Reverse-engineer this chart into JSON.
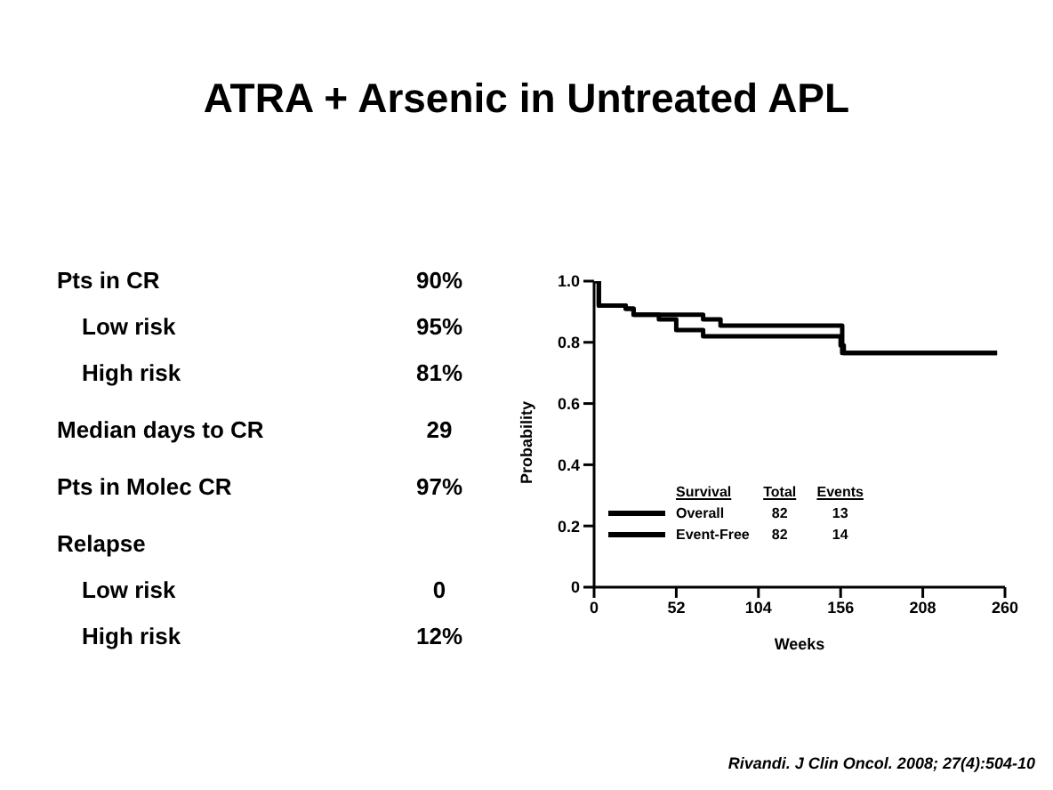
{
  "chart_data": [
    {
      "type": "other",
      "title": "ATRA + Arsenic in Untreated APL",
      "categories": [
        "Pts in CR",
        "Low risk",
        "High risk",
        "Median days to CR",
        "Pts in Molec CR",
        "Relapse",
        "Low risk",
        "High risk"
      ],
      "value_labels": [
        "90%",
        "95%",
        "81%",
        "29",
        "97%",
        null,
        "0",
        "12%"
      ],
      "annotations": [
        "Rivandi. J Clin Oncol. 2008; 27(4):504-10"
      ]
    },
    {
      "type": "step",
      "xlabel": "Weeks",
      "ylabel": "Probability",
      "legend_title": "Survival",
      "legend": "bottom left",
      "grid": false,
      "xlim": [
        0,
        260
      ],
      "xticks": [
        0,
        52,
        104,
        156,
        208,
        260
      ],
      "ylim": [
        0,
        1
      ],
      "yticks": [
        0,
        0.2,
        0.4,
        0.6,
        0.8,
        {
          "value": 1,
          "label": "1.0"
        }
      ],
      "annotations": [
        "Total",
        "Events",
        "82",
        "13",
        "82",
        "14"
      ],
      "series": [
        {
          "name": "Overall",
          "color": "#000000",
          "x": [
            0,
            3,
            20,
            25,
            69,
            80,
            157,
            255
          ],
          "values": [
            1,
            0.92,
            0.91,
            0.89,
            0.875,
            0.855,
            0.765,
            0.765
          ]
        },
        {
          "name": "Event-Free",
          "color": "#000000",
          "x": [
            0,
            3,
            20,
            25,
            41,
            52,
            69,
            156,
            158,
            255
          ],
          "values": [
            1,
            0.92,
            0.91,
            0.89,
            0.875,
            0.84,
            0.82,
            0.79,
            0.765,
            0.765
          ]
        }
      ]
    }
  ]
}
